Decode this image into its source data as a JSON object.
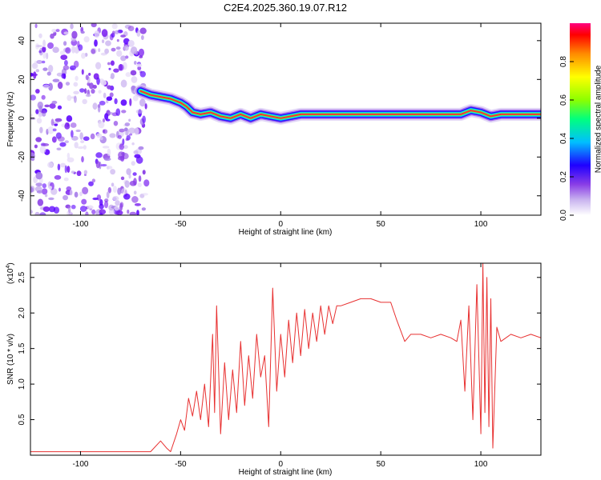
{
  "title": "C2E4.2025.360.19.07.R12",
  "colors": {
    "snr_line": "#e83030",
    "spectrogram_background": "#ffffff",
    "colormap": [
      "#ffffff",
      "#c9b3ef",
      "#8a3ee6",
      "#1f00ff",
      "#00bfff",
      "#00ff7f",
      "#8cff00",
      "#ffff00",
      "#ff8c00",
      "#ff0000",
      "#ff0080"
    ]
  },
  "chart_data": [
    {
      "type": "heatmap",
      "name": "spectrogram",
      "xlabel": "Height of straight line (km)",
      "ylabel": "Frequency (Hz)",
      "xlim": [
        -125,
        130
      ],
      "ylim": [
        -50,
        49
      ],
      "xticks": [
        -100,
        -50,
        0,
        50,
        100
      ],
      "yticks": [
        -40,
        -20,
        0,
        20,
        40
      ],
      "grid": false,
      "ridge": {
        "x": [
          -70,
          -65,
          -60,
          -55,
          -50,
          -47,
          -44,
          -40,
          -35,
          -30,
          -25,
          -20,
          -15,
          -10,
          -5,
          0,
          5,
          10,
          20,
          40,
          60,
          80,
          90,
          95,
          100,
          105,
          110,
          130
        ],
        "y": [
          14,
          12,
          11,
          10,
          8,
          6,
          3,
          2,
          3,
          1,
          0,
          2,
          0,
          2,
          1,
          0,
          1,
          2,
          2,
          2,
          2,
          2,
          2,
          4,
          3,
          1,
          2,
          2
        ]
      },
      "noise_region": {
        "x_from": -125,
        "x_to": -67
      },
      "colorbar": {
        "label": "Normalized spectral amplitude",
        "range": [
          0,
          1
        ],
        "ticks": [
          "0.0",
          "0.2",
          "0.4",
          "0.6",
          "0.8"
        ]
      }
    },
    {
      "type": "line",
      "name": "snr",
      "xlabel": "Height of straight line (km)",
      "ylabel": "SNR (10 * v/v)",
      "y_multiplier_label": "(x10",
      "y_multiplier_exponent": "4",
      "y_multiplier_close": ")",
      "xlim": [
        -125,
        130
      ],
      "ylim": [
        0,
        2.7
      ],
      "xticks": [
        -100,
        -50,
        0,
        50,
        100
      ],
      "yticks": [
        "0.5",
        "1.0",
        "1.5",
        "2.0",
        "2.5"
      ],
      "grid": false,
      "series": [
        {
          "color": "#e83030",
          "x": [
            -125,
            -65,
            -60,
            -57,
            -55,
            -52,
            -50,
            -48,
            -46,
            -44,
            -42,
            -40,
            -38,
            -36,
            -34,
            -33,
            -32,
            -30,
            -28,
            -26,
            -24,
            -22,
            -20,
            -18,
            -16,
            -14,
            -12,
            -10,
            -8,
            -6,
            -4,
            -2,
            0,
            2,
            4,
            6,
            8,
            10,
            12,
            14,
            16,
            18,
            20,
            22,
            24,
            26,
            28,
            30,
            35,
            40,
            45,
            50,
            55,
            58,
            62,
            65,
            70,
            75,
            80,
            85,
            88,
            90,
            92,
            94,
            96,
            98,
            100,
            101,
            102,
            103,
            104,
            105,
            106,
            108,
            110,
            115,
            120,
            125,
            130
          ],
          "y": [
            0.05,
            0.05,
            0.2,
            0.1,
            0.05,
            0.3,
            0.5,
            0.35,
            0.8,
            0.55,
            0.9,
            0.5,
            1.0,
            0.4,
            1.7,
            0.6,
            2.1,
            0.3,
            1.3,
            0.5,
            1.2,
            0.6,
            1.6,
            0.7,
            1.4,
            0.8,
            1.7,
            1.1,
            1.4,
            0.4,
            2.35,
            0.9,
            1.7,
            1.1,
            1.9,
            1.3,
            2.0,
            1.4,
            2.05,
            1.5,
            2.0,
            1.6,
            2.1,
            1.7,
            2.1,
            1.85,
            2.1,
            2.1,
            2.15,
            2.2,
            2.2,
            2.15,
            2.15,
            1.9,
            1.6,
            1.7,
            1.7,
            1.65,
            1.7,
            1.65,
            1.6,
            1.9,
            0.9,
            2.1,
            0.5,
            2.4,
            0.3,
            2.7,
            0.6,
            2.5,
            0.4,
            2.2,
            0.1,
            1.8,
            1.6,
            1.7,
            1.65,
            1.7,
            1.65
          ]
        }
      ]
    }
  ]
}
